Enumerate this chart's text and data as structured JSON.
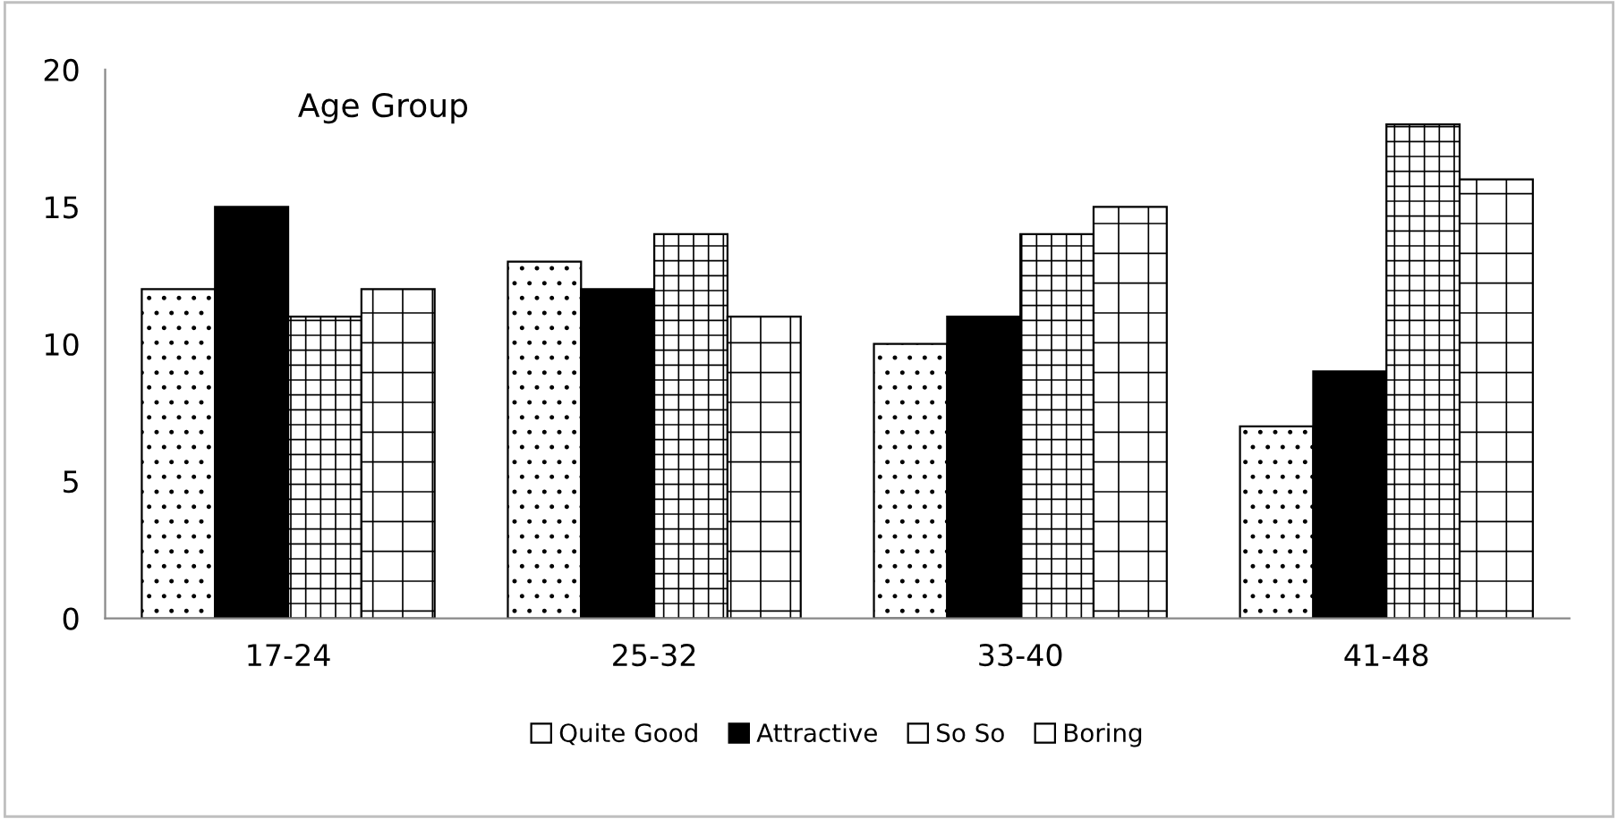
{
  "chart_data": {
    "type": "bar",
    "title": "Age Group",
    "categories": [
      "17-24",
      "25-32",
      "33-40",
      "41-48"
    ],
    "series": [
      {
        "name": "Quite Good",
        "color": "#ffffff",
        "values": [
          12,
          13,
          10,
          7
        ]
      },
      {
        "name": "Attractive",
        "color": "#000000",
        "values": [
          15,
          12,
          11,
          9
        ]
      },
      {
        "name": "So So",
        "color": "#ffffff",
        "values": [
          11,
          14,
          14,
          18
        ]
      },
      {
        "name": "Boring",
        "color": "#ffffff",
        "values": [
          12,
          11,
          15,
          16
        ]
      }
    ],
    "ylim": [
      0,
      20
    ],
    "yticks": [
      0,
      5,
      10,
      15,
      20
    ],
    "grid": false,
    "legend": "bottom"
  }
}
